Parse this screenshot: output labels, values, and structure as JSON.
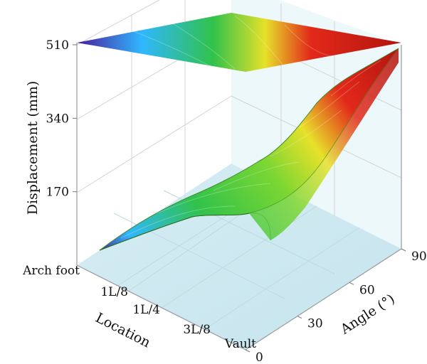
{
  "chart_data": {
    "type": "surface3d",
    "zlabel": "Displacement (mm)",
    "xlabel": "Location",
    "ylabel": "Angle (°)",
    "z_ticks": [
      "170",
      "340",
      "510"
    ],
    "z_range": [
      0,
      510
    ],
    "x_ticks": [
      "Arch foot",
      "1L/8",
      "1L/4",
      "3L/8",
      "Vault"
    ],
    "y_ticks": [
      "0",
      "30",
      "60",
      "90"
    ],
    "y_range": [
      0,
      90
    ],
    "grid": true,
    "colormap": [
      "#4b1b9a",
      "#2fb7ff",
      "#31c24a",
      "#e7e12a",
      "#e2291a",
      "#b2140e"
    ],
    "surface": {
      "angles": [
        0,
        30,
        60,
        90
      ],
      "locations": [
        "Arch foot",
        "1L/8",
        "1L/4",
        "3L/8",
        "Vault"
      ],
      "displacement_at_arch_foot": [
        30,
        110,
        160,
        250
      ],
      "displacement_at_vault": [
        60,
        150,
        330,
        510
      ]
    },
    "contour_projection_on_top": true
  }
}
